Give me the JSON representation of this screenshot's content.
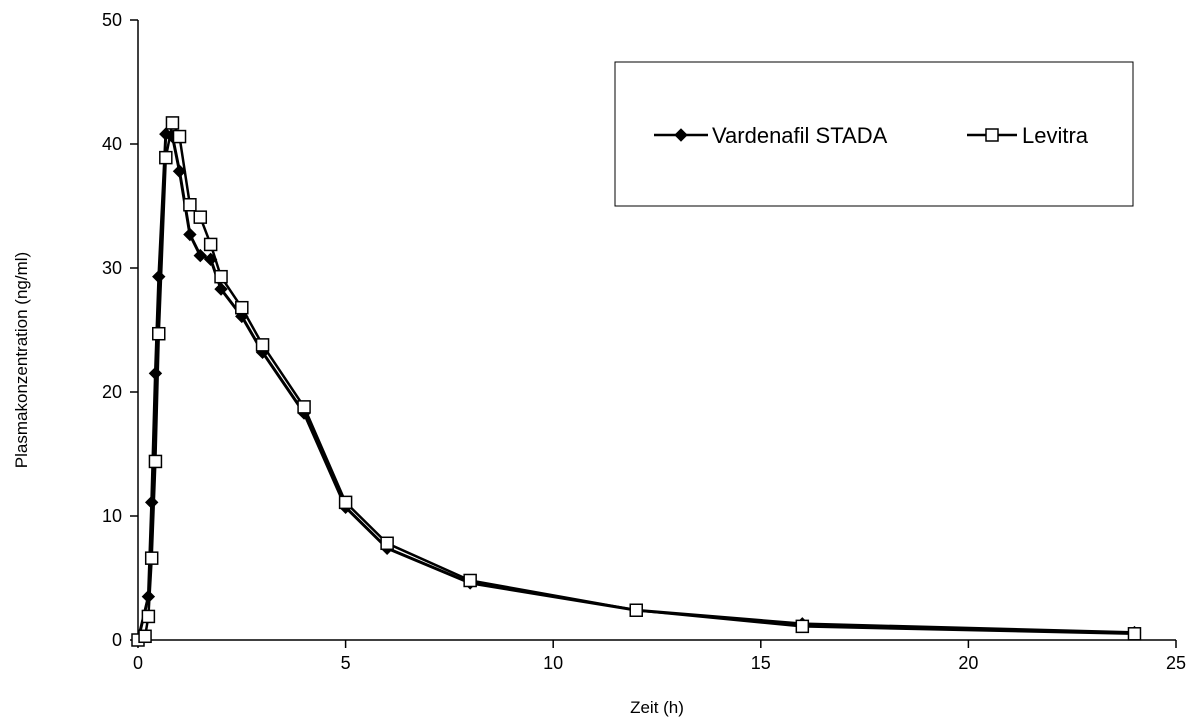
{
  "chart_data": {
    "type": "line",
    "xlabel": "Zeit (h)",
    "ylabel": "Plasmakonzentration (ng/ml)",
    "xlim": [
      0,
      25
    ],
    "ylim": [
      0,
      50
    ],
    "xticks": [
      "0",
      "5",
      "10",
      "15",
      "20",
      "25"
    ],
    "yticks": [
      "0",
      "10",
      "20",
      "30",
      "40",
      "50"
    ],
    "grid": false,
    "legend_position": "top-right",
    "series": [
      {
        "name": "Vardenafil STADA",
        "marker": "filled-diamond",
        "color": "#000000",
        "x": [
          0,
          0.25,
          0.33,
          0.42,
          0.5,
          0.67,
          0.83,
          1,
          1.25,
          1.5,
          1.75,
          2,
          2.5,
          3,
          4,
          5,
          6,
          8,
          12,
          16,
          24
        ],
        "y": [
          0,
          3.5,
          11.1,
          21.5,
          29.3,
          40.8,
          40.6,
          37.8,
          32.7,
          31.0,
          30.7,
          28.3,
          26.1,
          23.2,
          18.3,
          10.7,
          7.4,
          4.6,
          2.4,
          1.3,
          0.6
        ]
      },
      {
        "name": "Levitra",
        "marker": "open-square",
        "color": "#000000",
        "x": [
          0,
          0.17,
          0.25,
          0.33,
          0.42,
          0.5,
          0.67,
          0.83,
          1,
          1.25,
          1.5,
          1.75,
          2,
          2.5,
          3,
          4,
          5,
          6,
          8,
          12,
          16,
          24
        ],
        "y": [
          0,
          0.3,
          1.9,
          6.6,
          14.4,
          24.7,
          38.9,
          41.7,
          40.6,
          35.1,
          34.1,
          31.9,
          29.3,
          26.8,
          23.8,
          18.8,
          11.1,
          7.8,
          4.8,
          2.4,
          1.1,
          0.5
        ]
      }
    ]
  }
}
